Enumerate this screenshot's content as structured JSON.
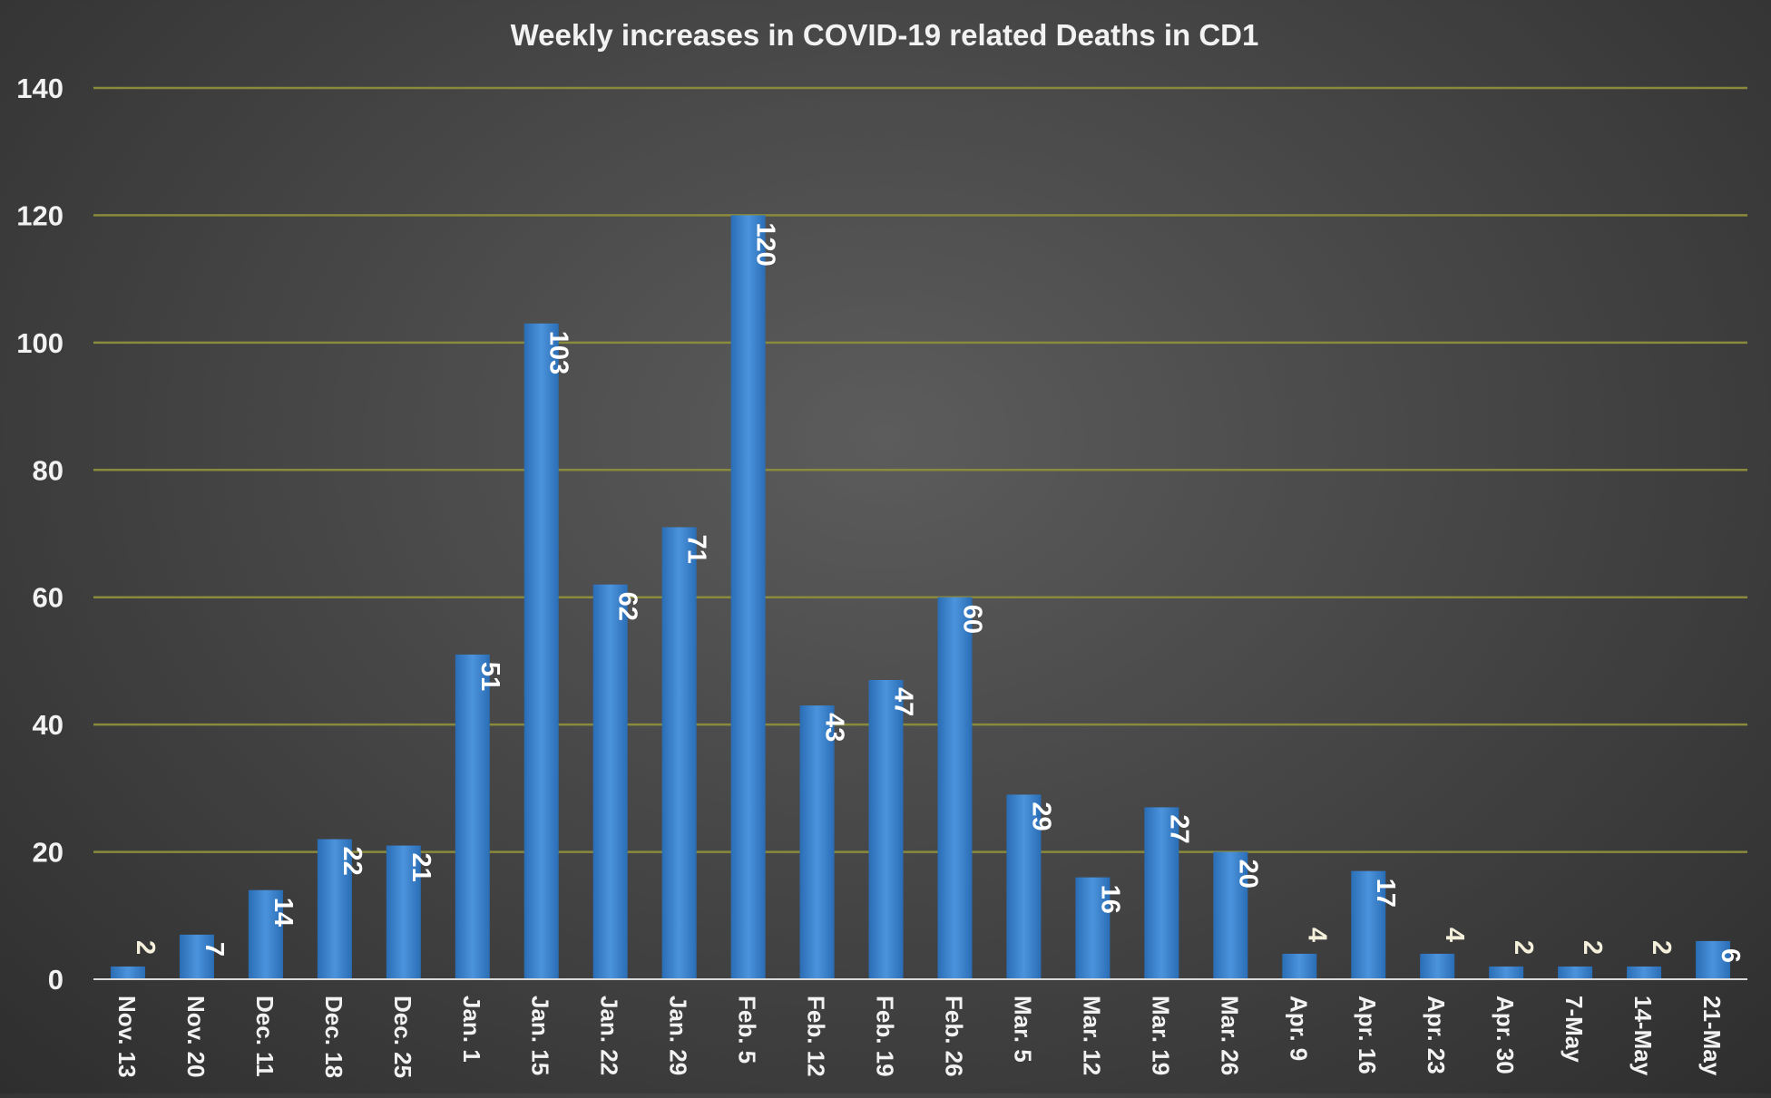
{
  "chart_data": {
    "type": "bar",
    "title": "Weekly increases in COVID-19 related Deaths in CD1",
    "xlabel": "",
    "ylabel": "",
    "ylim": [
      0,
      140
    ],
    "yticks": [
      "0",
      "20",
      "40",
      "60",
      "80",
      "100",
      "120",
      "140"
    ],
    "grid": true,
    "legend": "none",
    "categories": [
      "Nov. 13",
      "Nov. 20",
      "Dec. 11",
      "Dec. 18",
      "Dec. 25",
      "Jan. 1",
      "Jan. 15",
      "Jan. 22",
      "Jan. 29",
      "Feb. 5",
      "Feb. 12",
      "Feb. 19",
      "Feb. 26",
      "Mar. 5",
      "Mar. 12",
      "Mar. 19",
      "Mar. 26",
      "Apr. 9",
      "Apr. 16",
      "Apr. 23",
      "Apr. 30",
      "7-May",
      "14-May",
      "21-May"
    ],
    "values": [
      2,
      7,
      14,
      22,
      21,
      51,
      103,
      62,
      71,
      120,
      43,
      47,
      60,
      29,
      16,
      27,
      20,
      4,
      17,
      4,
      2,
      2,
      2,
      6
    ],
    "colors": {
      "bar_dark": "#2a6db5",
      "bar_light": "#4b94dd",
      "gridline": "#8a8a3c",
      "axis": "#d9d9d9",
      "text": "#f2f2f2",
      "label_outside": "#f5f0dc"
    }
  }
}
